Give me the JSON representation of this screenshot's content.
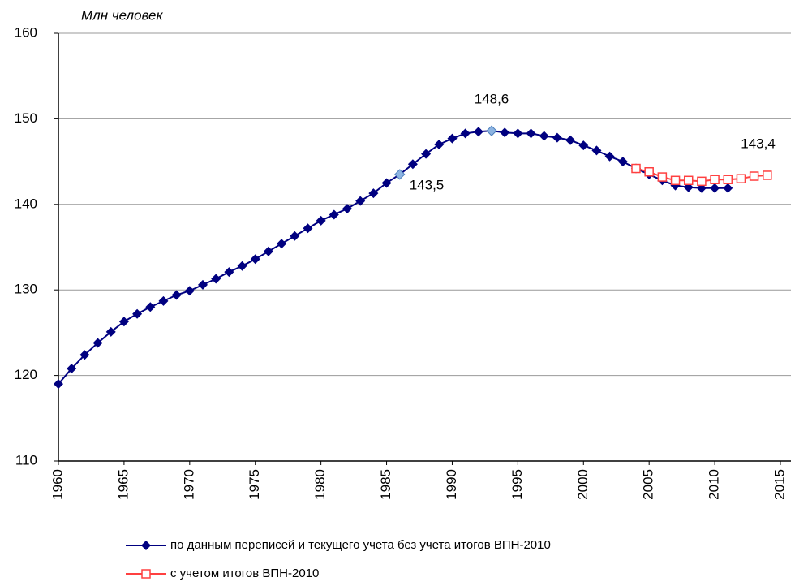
{
  "chart_data": {
    "type": "line",
    "y_axis_label": "Млн человек",
    "x": [
      1960,
      1961,
      1962,
      1963,
      1964,
      1965,
      1966,
      1967,
      1968,
      1969,
      1970,
      1971,
      1972,
      1973,
      1974,
      1975,
      1976,
      1977,
      1978,
      1979,
      1980,
      1981,
      1982,
      1983,
      1984,
      1985,
      1986,
      1987,
      1988,
      1989,
      1990,
      1991,
      1992,
      1993,
      1994,
      1995,
      1996,
      1997,
      1998,
      1999,
      2000,
      2001,
      2002,
      2003,
      2004,
      2005,
      2006,
      2007,
      2008,
      2009,
      2010,
      2011,
      2012,
      2013,
      2014
    ],
    "xlim": [
      1960,
      2015
    ],
    "xticks": [
      1960,
      1965,
      1970,
      1975,
      1980,
      1985,
      1990,
      1995,
      2000,
      2005,
      2010,
      2015
    ],
    "ylim": [
      110,
      160
    ],
    "yticks": [
      110,
      120,
      130,
      140,
      150,
      160
    ],
    "grid": true,
    "series": [
      {
        "name": "по данным переписей и текущего учета без учета итогов ВПН-2010",
        "color": "#000080",
        "marker": "diamond",
        "highlight_color": "#8db4e2",
        "values": [
          119.0,
          120.8,
          122.4,
          123.8,
          125.1,
          126.3,
          127.2,
          128.0,
          128.7,
          129.4,
          129.9,
          130.6,
          131.3,
          132.1,
          132.8,
          133.6,
          134.5,
          135.4,
          136.3,
          137.2,
          138.1,
          138.8,
          139.5,
          140.4,
          141.3,
          142.5,
          143.5,
          144.7,
          145.9,
          147.0,
          147.7,
          148.3,
          148.5,
          148.6,
          148.4,
          148.3,
          148.3,
          148.0,
          147.8,
          147.5,
          146.9,
          146.3,
          145.6,
          145.0,
          144.2,
          143.5,
          142.8,
          142.2,
          142.0,
          141.9,
          141.9,
          141.9,
          null,
          null,
          null
        ],
        "value_labels": [
          null,
          null,
          null,
          null,
          null,
          null,
          null,
          null,
          null,
          null,
          null,
          null,
          null,
          null,
          null,
          null,
          null,
          null,
          null,
          null,
          null,
          null,
          null,
          null,
          null,
          null,
          "143,5",
          null,
          null,
          null,
          null,
          null,
          null,
          "148,6",
          null,
          null,
          null,
          null,
          null,
          null,
          null,
          null,
          null,
          null,
          null,
          null,
          null,
          null,
          null,
          null,
          null,
          null,
          null,
          null,
          null
        ]
      },
      {
        "name": "с учетом итогов ВПН-2010",
        "color": "#ff4040",
        "marker": "square",
        "values": [
          null,
          null,
          null,
          null,
          null,
          null,
          null,
          null,
          null,
          null,
          null,
          null,
          null,
          null,
          null,
          null,
          null,
          null,
          null,
          null,
          null,
          null,
          null,
          null,
          null,
          null,
          null,
          null,
          null,
          null,
          null,
          null,
          null,
          null,
          null,
          null,
          null,
          null,
          null,
          null,
          null,
          null,
          null,
          null,
          144.2,
          143.8,
          143.2,
          142.8,
          142.8,
          142.7,
          142.9,
          142.9,
          143.0,
          143.3,
          143.4
        ],
        "value_labels": [
          null,
          null,
          null,
          null,
          null,
          null,
          null,
          null,
          null,
          null,
          null,
          null,
          null,
          null,
          null,
          null,
          null,
          null,
          null,
          null,
          null,
          null,
          null,
          null,
          null,
          null,
          null,
          null,
          null,
          null,
          null,
          null,
          null,
          null,
          null,
          null,
          null,
          null,
          null,
          null,
          null,
          null,
          null,
          null,
          null,
          null,
          null,
          null,
          null,
          null,
          null,
          null,
          null,
          null,
          "143,4"
        ]
      }
    ]
  }
}
